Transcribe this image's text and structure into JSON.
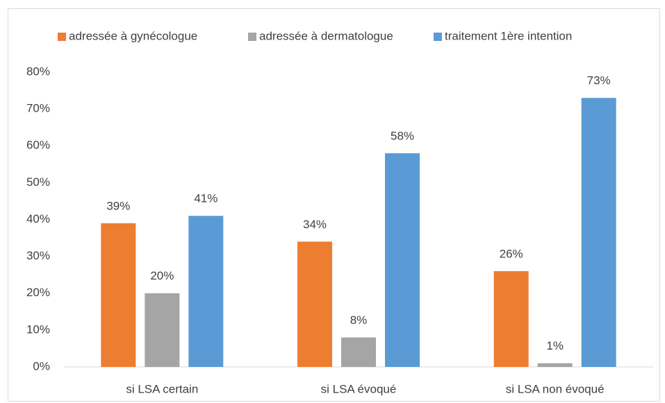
{
  "chart_data": {
    "type": "bar",
    "categories": [
      "si LSA certain",
      "si LSA évoqué",
      "si LSA non évoqué"
    ],
    "series": [
      {
        "name": "adressée à gynécologue",
        "color": "#ed7d31",
        "values": [
          39,
          34,
          26
        ],
        "value_labels": [
          "39%",
          "34%",
          "26%"
        ]
      },
      {
        "name": "adressée à dermatologue",
        "color": "#a5a5a5",
        "values": [
          20,
          8,
          1
        ],
        "value_labels": [
          "20%",
          "8%",
          "1%"
        ]
      },
      {
        "name": "traitement 1ère intention",
        "color": "#5b9bd5",
        "values": [
          41,
          58,
          73
        ],
        "value_labels": [
          "41%",
          "58%",
          "73%"
        ]
      }
    ],
    "ylim": [
      0,
      80
    ],
    "yticks": [
      {
        "value": 0,
        "label": "0%"
      },
      {
        "value": 10,
        "label": "10%"
      },
      {
        "value": 20,
        "label": "20%"
      },
      {
        "value": 30,
        "label": "30%"
      },
      {
        "value": 40,
        "label": "40%"
      },
      {
        "value": 50,
        "label": "50%"
      },
      {
        "value": 60,
        "label": "60%"
      },
      {
        "value": 70,
        "label": "70%"
      },
      {
        "value": 80,
        "label": "80%"
      }
    ],
    "grid": false,
    "legend": "top"
  }
}
